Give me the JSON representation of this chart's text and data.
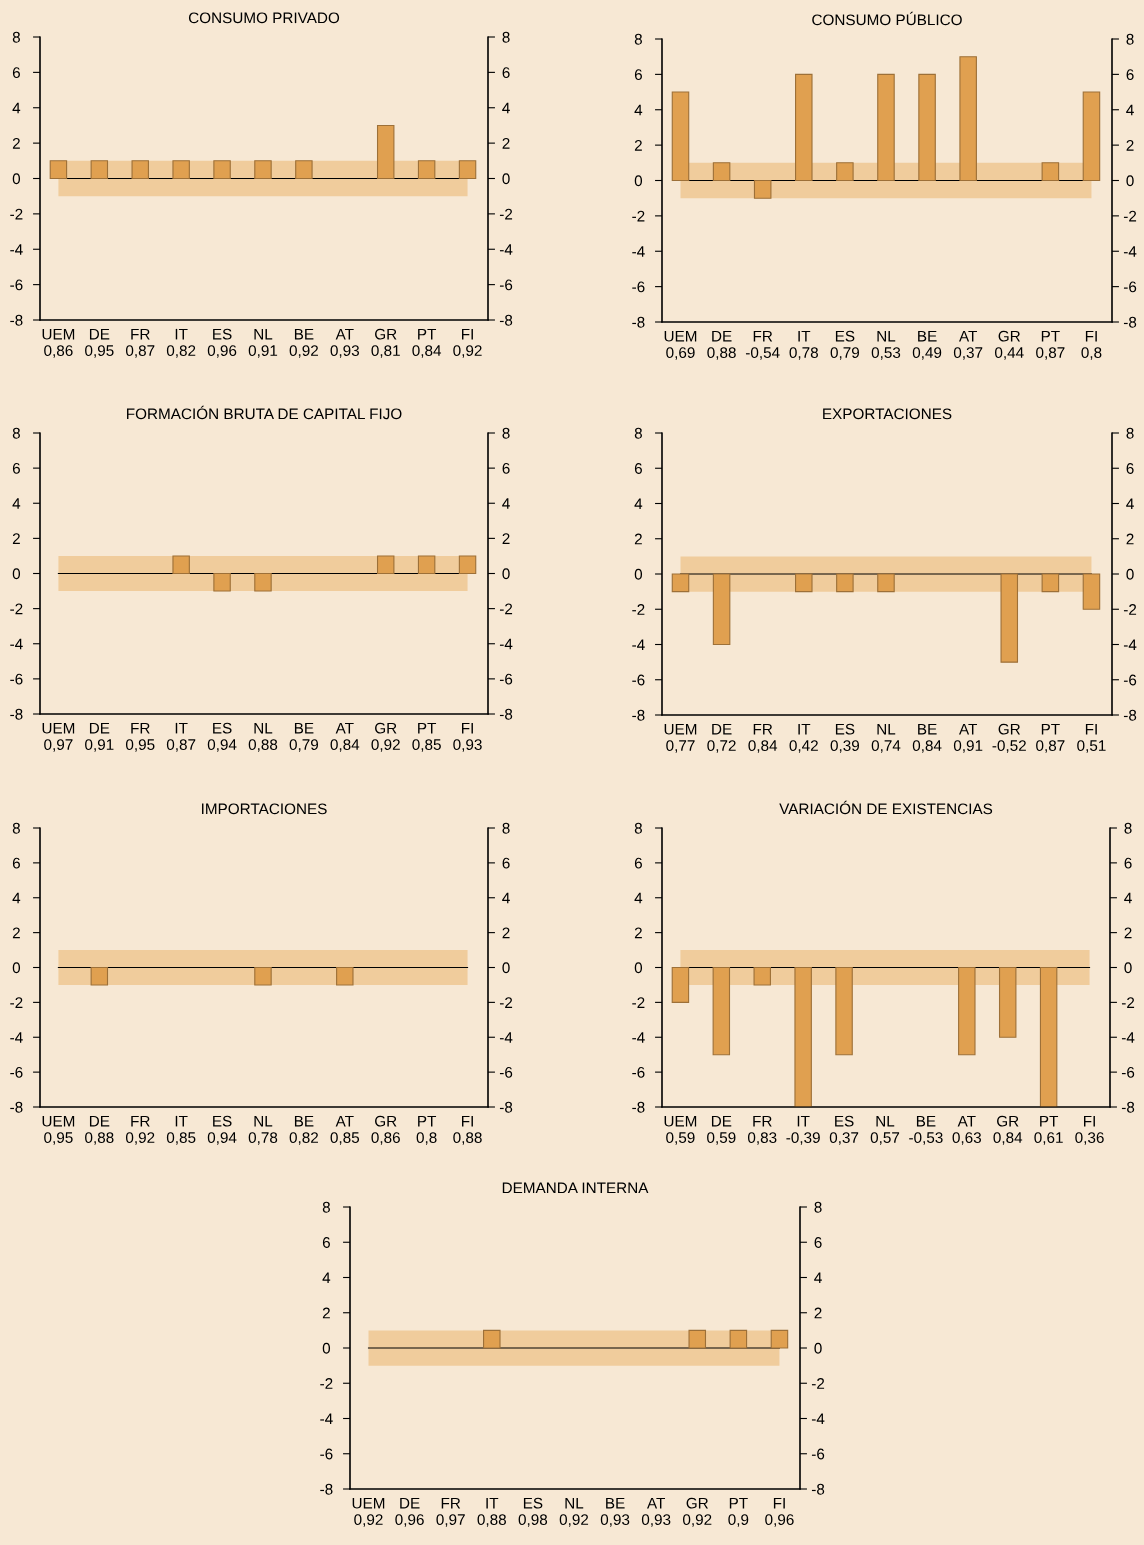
{
  "chart_data": [
    {
      "type": "bar",
      "title": "CONSUMO PRIVADO",
      "categories": [
        "UEM\n0,86",
        "DE\n0,95",
        "FR\n0,87",
        "IT\n0,82",
        "ES\n0,96",
        "NL\n0,91",
        "BE\n0,92",
        "AT\n0,93",
        "GR\n0,81",
        "PT\n0,84",
        "FI\n0,92"
      ],
      "values": [
        1,
        1,
        1,
        1,
        1,
        1,
        1,
        0,
        3,
        1,
        1
      ],
      "color": "#e0a050",
      "ylim": [
        -8,
        8
      ],
      "yticks": [
        -8,
        -6,
        -4,
        -2,
        0,
        2,
        4,
        6,
        8
      ],
      "y2lim": [
        -8,
        8
      ],
      "y2ticks": [
        -8,
        -6,
        -4,
        -2,
        0,
        2,
        4,
        6,
        8
      ],
      "bands": [
        {
          "axis": "y",
          "from": -1,
          "to": 1,
          "color": "#f0cc9c"
        }
      ],
      "ref_lines": [
        {
          "axis": "y",
          "value": 0,
          "color": "#000000"
        }
      ],
      "grid": false,
      "legend": false
    },
    {
      "type": "bar",
      "title": "CONSUMO PÚBLICO",
      "categories": [
        "UEM\n0,69",
        "DE\n0,88",
        "FR\n-0,54",
        "IT\n0,78",
        "ES\n0,79",
        "NL\n0,53",
        "BE\n0,49",
        "AT\n0,37",
        "GR\n0,44",
        "PT\n0,87",
        "FI\n0,8"
      ],
      "values": [
        5,
        1,
        -1,
        6,
        1,
        6,
        6,
        7,
        0,
        1,
        5
      ],
      "color": "#e0a050",
      "ylim": [
        -8,
        8
      ],
      "yticks": [
        -8,
        -6,
        -4,
        -2,
        0,
        2,
        4,
        6,
        8
      ],
      "y2lim": [
        -8,
        8
      ],
      "y2ticks": [
        -8,
        -6,
        -4,
        -2,
        0,
        2,
        4,
        6,
        8
      ],
      "bands": [
        {
          "axis": "y",
          "from": -1,
          "to": 1,
          "color": "#f0cc9c"
        }
      ],
      "ref_lines": [
        {
          "axis": "y",
          "value": 0,
          "color": "#000000"
        }
      ],
      "grid": false,
      "legend": false
    },
    {
      "type": "bar",
      "title": "FORMACIÓN BRUTA DE CAPITAL FIJO",
      "categories": [
        "UEM\n0,97",
        "DE\n0,91",
        "FR\n0,95",
        "IT\n0,87",
        "ES\n0,94",
        "NL\n0,88",
        "BE\n0,79",
        "AT\n0,84",
        "GR\n0,92",
        "PT\n0,85",
        "FI\n0,93"
      ],
      "values": [
        0,
        0,
        0,
        1,
        -1,
        -1,
        0,
        0,
        1,
        1,
        1
      ],
      "color": "#e0a050",
      "ylim": [
        -8,
        8
      ],
      "yticks": [
        -8,
        -6,
        -4,
        -2,
        0,
        2,
        4,
        6,
        8
      ],
      "y2lim": [
        -8,
        8
      ],
      "y2ticks": [
        -8,
        -6,
        -4,
        -2,
        0,
        2,
        4,
        6,
        8
      ],
      "bands": [
        {
          "axis": "y",
          "from": -1,
          "to": 1,
          "color": "#f0cc9c"
        }
      ],
      "ref_lines": [
        {
          "axis": "y",
          "value": 0,
          "color": "#000000"
        }
      ],
      "grid": false,
      "legend": false
    },
    {
      "type": "bar",
      "title": "EXPORTACIONES",
      "categories": [
        "UEM\n0,77",
        "DE\n0,72",
        "FR\n0,84",
        "IT\n0,42",
        "ES\n0,39",
        "NL\n0,74",
        "BE\n0,84",
        "AT\n0,91",
        "GR\n-0,52",
        "PT\n0,87",
        "FI\n0,51"
      ],
      "values": [
        -1,
        -4,
        0,
        -1,
        -1,
        -1,
        0,
        0,
        -5,
        -1,
        -2
      ],
      "color": "#e0a050",
      "ylim": [
        -8,
        8
      ],
      "yticks": [
        -8,
        -6,
        -4,
        -2,
        0,
        2,
        4,
        6,
        8
      ],
      "y2lim": [
        -8,
        8
      ],
      "y2ticks": [
        -8,
        -6,
        -4,
        -2,
        0,
        2,
        4,
        6,
        8
      ],
      "bands": [
        {
          "axis": "y",
          "from": -1,
          "to": 1,
          "color": "#f0cc9c"
        }
      ],
      "ref_lines": [
        {
          "axis": "y",
          "value": 0,
          "color": "#000000"
        }
      ],
      "grid": false,
      "legend": false
    },
    {
      "type": "bar",
      "title": "IMPORTACIONES",
      "categories": [
        "UEM\n0,95",
        "DE\n0,88",
        "FR\n0,92",
        "IT\n0,85",
        "ES\n0,94",
        "NL\n0,78",
        "BE\n0,82",
        "AT\n0,85",
        "GR\n0,86",
        "PT\n0,8",
        "FI\n0,88"
      ],
      "values": [
        0,
        -1,
        0,
        0,
        0,
        -1,
        0,
        -1,
        0,
        0,
        0
      ],
      "color": "#e0a050",
      "ylim": [
        -8,
        8
      ],
      "yticks": [
        -8,
        -6,
        -4,
        -2,
        0,
        2,
        4,
        6,
        8
      ],
      "y2lim": [
        -8,
        8
      ],
      "y2ticks": [
        -8,
        -6,
        -4,
        -2,
        0,
        2,
        4,
        6,
        8
      ],
      "bands": [
        {
          "axis": "y",
          "from": -1,
          "to": 1,
          "color": "#f0cc9c"
        }
      ],
      "ref_lines": [
        {
          "axis": "y",
          "value": 0,
          "color": "#000000"
        }
      ],
      "grid": false,
      "legend": false
    },
    {
      "type": "bar",
      "title": "VARIACIÓN DE EXISTENCIAS",
      "categories": [
        "UEM\n0,59",
        "DE\n0,59",
        "FR\n0,83",
        "IT\n-0,39",
        "ES\n0,37",
        "NL\n0,57",
        "BE\n-0,53",
        "AT\n0,63",
        "GR\n0,84",
        "PT\n0,61",
        "FI\n0,36"
      ],
      "values": [
        -2,
        -5,
        -1,
        -8,
        -5,
        0,
        0,
        -5,
        -4,
        -8,
        0
      ],
      "color": "#e0a050",
      "ylim": [
        -8,
        8
      ],
      "yticks": [
        -8,
        -6,
        -4,
        -2,
        0,
        2,
        4,
        6,
        8
      ],
      "y2lim": [
        -8,
        8
      ],
      "y2ticks": [
        -8,
        -6,
        -4,
        -2,
        0,
        2,
        4,
        6,
        8
      ],
      "bands": [
        {
          "axis": "y",
          "from": -1,
          "to": 1,
          "color": "#f0cc9c"
        }
      ],
      "ref_lines": [
        {
          "axis": "y",
          "value": 0,
          "color": "#000000"
        }
      ],
      "grid": false,
      "legend": false
    },
    {
      "type": "bar",
      "title": "DEMANDA INTERNA",
      "categories": [
        "UEM\n0,92",
        "DE\n0,96",
        "FR\n0,97",
        "IT\n0,88",
        "ES\n0,98",
        "NL\n0,92",
        "BE\n0,93",
        "AT\n0,93",
        "GR\n0,92",
        "PT\n0,9",
        "FI\n0,96"
      ],
      "values": [
        0,
        0,
        0,
        1,
        0,
        0,
        0,
        0,
        1,
        1,
        1
      ],
      "color": "#e0a050",
      "ylim": [
        -8,
        8
      ],
      "yticks": [
        -8,
        -6,
        -4,
        -2,
        0,
        2,
        4,
        6,
        8
      ],
      "y2lim": [
        -8,
        8
      ],
      "y2ticks": [
        -8,
        -6,
        -4,
        -2,
        0,
        2,
        4,
        6,
        8
      ],
      "bands": [
        {
          "axis": "y",
          "from": -1,
          "to": 1,
          "color": "#f0cc9c"
        }
      ],
      "ref_lines": [
        {
          "axis": "y",
          "value": 0,
          "color": "#000000"
        }
      ],
      "grid": false,
      "legend": false
    }
  ]
}
